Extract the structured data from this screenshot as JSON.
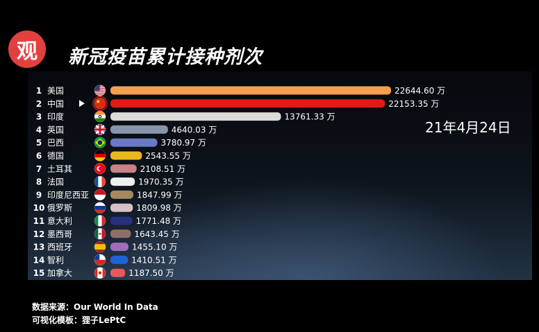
{
  "badge": {
    "char": "观",
    "color": "#e2403f"
  },
  "date": "21年4月24日",
  "footer": {
    "source": "数据来源：Our World In Data",
    "template": "可视化模板：狸子LePtC"
  },
  "chart_data": {
    "type": "bar",
    "orientation": "horizontal",
    "title": "新冠疫苗累计接种剂次",
    "unit": "万",
    "highlighted": "中国",
    "categories": [
      "美国",
      "中国",
      "印度",
      "英国",
      "巴西",
      "德国",
      "土耳其",
      "法国",
      "印度尼西亚",
      "俄罗斯",
      "意大利",
      "墨西哥",
      "西班牙",
      "智利",
      "加拿大"
    ],
    "ranks": [
      1,
      2,
      3,
      4,
      5,
      6,
      7,
      8,
      9,
      10,
      11,
      12,
      13,
      14,
      15
    ],
    "values": [
      22644.6,
      22153.35,
      13761.33,
      4640.03,
      3780.97,
      2543.55,
      2108.51,
      1970.35,
      1847.99,
      1809.98,
      1771.48,
      1643.45,
      1455.1,
      1410.51,
      1187.5
    ],
    "value_labels": [
      "22644.60 万",
      "22153.35 万",
      "13761.33 万",
      "4640.03 万",
      "3780.97 万",
      "2543.55 万",
      "2108.51 万",
      "1970.35 万",
      "1847.99 万",
      "1809.98 万",
      "1771.48 万",
      "1643.45 万",
      "1455.10 万",
      "1410.51 万",
      "1187.50 万"
    ],
    "colors": [
      "#f5a04f",
      "#e01b16",
      "#dddad8",
      "#8b94ad",
      "#6a79c5",
      "#e9b81c",
      "#c98286",
      "#eeeeee",
      "#a6885f",
      "#d8c0c4",
      "#29307e",
      "#8e6f68",
      "#a26cb8",
      "#1d63d7",
      "#e65a5a"
    ],
    "flags": [
      "us-flag",
      "cn-flag",
      "in-flag",
      "gb-flag",
      "br-flag",
      "de-flag",
      "tr-flag",
      "fr-flag",
      "id-flag",
      "ru-flag",
      "it-flag",
      "mx-flag",
      "es-flag",
      "cl-flag",
      "ca-flag"
    ],
    "xlim": [
      0,
      22644.6
    ]
  }
}
